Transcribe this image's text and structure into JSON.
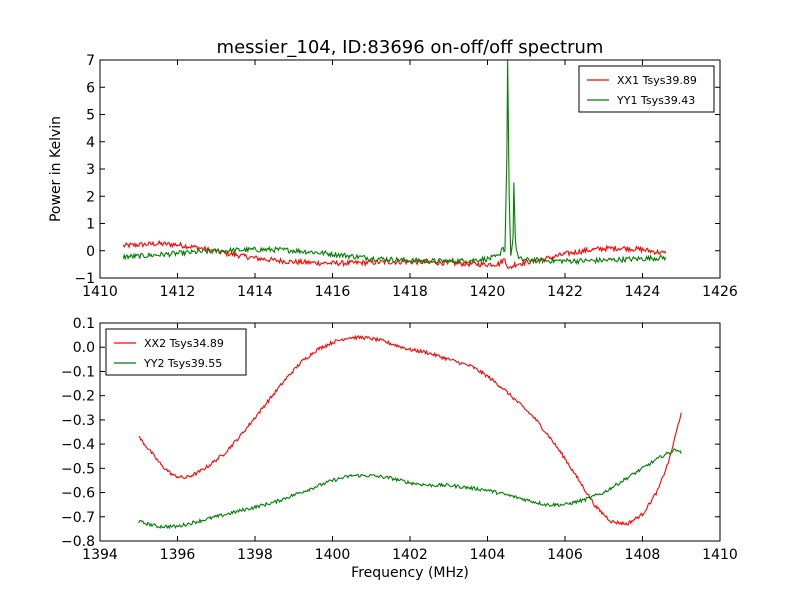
{
  "title": "messier_104, ID:83696 on-off/off spectrum",
  "colors": {
    "red": "#ff0000",
    "green": "#008000"
  },
  "chart_data": [
    {
      "type": "line",
      "title": "messier_104, ID:83696 on-off/off spectrum",
      "xlabel": "",
      "ylabel": "Power in Kelvin",
      "xlim": [
        1410,
        1426
      ],
      "ylim": [
        -1,
        7
      ],
      "xticks": [
        1410,
        1412,
        1414,
        1416,
        1418,
        1420,
        1422,
        1424,
        1426
      ],
      "yticks": [
        -1,
        0,
        1,
        2,
        3,
        4,
        5,
        6,
        7
      ],
      "legend_position": "top-right",
      "series": [
        {
          "name": "XX1 Tsys39.89",
          "color": "#ff0000",
          "points": [
            [
              1410.6,
              0.18
            ],
            [
              1411.0,
              0.22
            ],
            [
              1411.5,
              0.26
            ],
            [
              1412.0,
              0.22
            ],
            [
              1412.5,
              0.12
            ],
            [
              1413.0,
              -0.02
            ],
            [
              1413.5,
              -0.15
            ],
            [
              1414.0,
              -0.27
            ],
            [
              1414.5,
              -0.35
            ],
            [
              1415.0,
              -0.41
            ],
            [
              1415.5,
              -0.44
            ],
            [
              1416.0,
              -0.46
            ],
            [
              1416.5,
              -0.45
            ],
            [
              1417.0,
              -0.43
            ],
            [
              1417.5,
              -0.41
            ],
            [
              1417.9,
              -0.4
            ],
            [
              1418.0,
              -0.4
            ],
            [
              1418.5,
              -0.42
            ],
            [
              1419.0,
              -0.45
            ],
            [
              1419.5,
              -0.48
            ],
            [
              1420.0,
              -0.5
            ],
            [
              1420.3,
              -0.48
            ],
            [
              1420.45,
              -0.3
            ],
            [
              1420.55,
              -0.68
            ],
            [
              1420.7,
              -0.5
            ],
            [
              1421.0,
              -0.42
            ],
            [
              1421.5,
              -0.3
            ],
            [
              1422.0,
              -0.12
            ],
            [
              1422.5,
              0.0
            ],
            [
              1423.0,
              0.08
            ],
            [
              1423.5,
              0.1
            ],
            [
              1424.0,
              0.04
            ],
            [
              1424.6,
              -0.1
            ]
          ]
        },
        {
          "name": "YY1 Tsys39.43",
          "color": "#008000",
          "points": [
            [
              1410.6,
              -0.22
            ],
            [
              1411.0,
              -0.2
            ],
            [
              1411.5,
              -0.15
            ],
            [
              1412.0,
              -0.1
            ],
            [
              1412.5,
              -0.05
            ],
            [
              1413.0,
              -0.01
            ],
            [
              1413.5,
              0.02
            ],
            [
              1414.0,
              0.04
            ],
            [
              1414.5,
              0.04
            ],
            [
              1415.0,
              0.01
            ],
            [
              1415.5,
              -0.05
            ],
            [
              1416.0,
              -0.12
            ],
            [
              1416.5,
              -0.2
            ],
            [
              1417.0,
              -0.27
            ],
            [
              1417.5,
              -0.32
            ],
            [
              1418.0,
              -0.36
            ],
            [
              1418.5,
              -0.38
            ],
            [
              1419.0,
              -0.38
            ],
            [
              1419.5,
              -0.36
            ],
            [
              1420.0,
              -0.3
            ],
            [
              1420.3,
              -0.2
            ],
            [
              1420.38,
              0.15
            ],
            [
              1420.45,
              0.0
            ],
            [
              1420.5,
              3.5
            ],
            [
              1420.52,
              7.0
            ],
            [
              1420.56,
              2.0
            ],
            [
              1420.6,
              -0.2
            ],
            [
              1420.66,
              0.5
            ],
            [
              1420.68,
              2.5
            ],
            [
              1420.72,
              0.3
            ],
            [
              1420.8,
              -0.3
            ],
            [
              1421.0,
              -0.34
            ],
            [
              1421.5,
              -0.36
            ],
            [
              1422.0,
              -0.37
            ],
            [
              1422.5,
              -0.37
            ],
            [
              1423.0,
              -0.35
            ],
            [
              1423.5,
              -0.32
            ],
            [
              1424.0,
              -0.29
            ],
            [
              1424.6,
              -0.25
            ]
          ]
        }
      ]
    },
    {
      "type": "line",
      "title": "",
      "xlabel": "Frequency (MHz)",
      "ylabel": "",
      "xlim": [
        1394,
        1410
      ],
      "ylim": [
        -0.8,
        0.1
      ],
      "xticks": [
        1394,
        1396,
        1398,
        1400,
        1402,
        1404,
        1406,
        1408,
        1410
      ],
      "yticks": [
        -0.8,
        -0.7,
        -0.6,
        -0.5,
        -0.4,
        -0.3,
        -0.2,
        -0.1,
        0.0,
        0.1
      ],
      "ytick_labels": [
        "−0.8",
        "−0.7",
        "−0.6",
        "−0.5",
        "−0.4",
        "−0.3",
        "−0.2",
        "−0.1",
        "0.0",
        "0.1"
      ],
      "legend_position": "top-left",
      "series": [
        {
          "name": "XX2 Tsys34.89",
          "color": "#ff0000",
          "points": [
            [
              1395.0,
              -0.37
            ],
            [
              1395.3,
              -0.43
            ],
            [
              1395.6,
              -0.49
            ],
            [
              1395.9,
              -0.53
            ],
            [
              1396.2,
              -0.54
            ],
            [
              1396.5,
              -0.52
            ],
            [
              1396.8,
              -0.49
            ],
            [
              1397.2,
              -0.44
            ],
            [
              1397.6,
              -0.37
            ],
            [
              1398.0,
              -0.29
            ],
            [
              1398.4,
              -0.21
            ],
            [
              1398.8,
              -0.13
            ],
            [
              1399.2,
              -0.06
            ],
            [
              1399.6,
              -0.01
            ],
            [
              1400.0,
              0.02
            ],
            [
              1400.4,
              0.04
            ],
            [
              1400.8,
              0.04
            ],
            [
              1401.2,
              0.03
            ],
            [
              1401.6,
              0.01
            ],
            [
              1402.0,
              -0.01
            ],
            [
              1402.4,
              -0.02
            ],
            [
              1402.8,
              -0.04
            ],
            [
              1403.2,
              -0.06
            ],
            [
              1403.6,
              -0.08
            ],
            [
              1404.0,
              -0.12
            ],
            [
              1404.4,
              -0.17
            ],
            [
              1404.8,
              -0.23
            ],
            [
              1405.2,
              -0.29
            ],
            [
              1405.6,
              -0.37
            ],
            [
              1406.0,
              -0.46
            ],
            [
              1406.4,
              -0.56
            ],
            [
              1406.8,
              -0.66
            ],
            [
              1407.2,
              -0.72
            ],
            [
              1407.6,
              -0.73
            ],
            [
              1408.0,
              -0.69
            ],
            [
              1408.4,
              -0.59
            ],
            [
              1408.7,
              -0.46
            ],
            [
              1409.0,
              -0.27
            ]
          ]
        },
        {
          "name": "YY2 Tsys39.55",
          "color": "#008000",
          "points": [
            [
              1395.0,
              -0.72
            ],
            [
              1395.5,
              -0.74
            ],
            [
              1396.0,
              -0.74
            ],
            [
              1396.5,
              -0.72
            ],
            [
              1397.0,
              -0.7
            ],
            [
              1397.5,
              -0.68
            ],
            [
              1398.0,
              -0.66
            ],
            [
              1398.5,
              -0.64
            ],
            [
              1399.0,
              -0.61
            ],
            [
              1399.5,
              -0.58
            ],
            [
              1400.0,
              -0.55
            ],
            [
              1400.5,
              -0.53
            ],
            [
              1401.0,
              -0.53
            ],
            [
              1401.5,
              -0.54
            ],
            [
              1402.0,
              -0.56
            ],
            [
              1402.5,
              -0.57
            ],
            [
              1403.0,
              -0.57
            ],
            [
              1403.5,
              -0.58
            ],
            [
              1404.0,
              -0.59
            ],
            [
              1404.5,
              -0.61
            ],
            [
              1405.0,
              -0.63
            ],
            [
              1405.5,
              -0.65
            ],
            [
              1406.0,
              -0.65
            ],
            [
              1406.5,
              -0.63
            ],
            [
              1407.0,
              -0.6
            ],
            [
              1407.5,
              -0.55
            ],
            [
              1408.0,
              -0.5
            ],
            [
              1408.5,
              -0.45
            ],
            [
              1408.9,
              -0.42
            ],
            [
              1409.0,
              -0.44
            ]
          ]
        }
      ]
    }
  ]
}
